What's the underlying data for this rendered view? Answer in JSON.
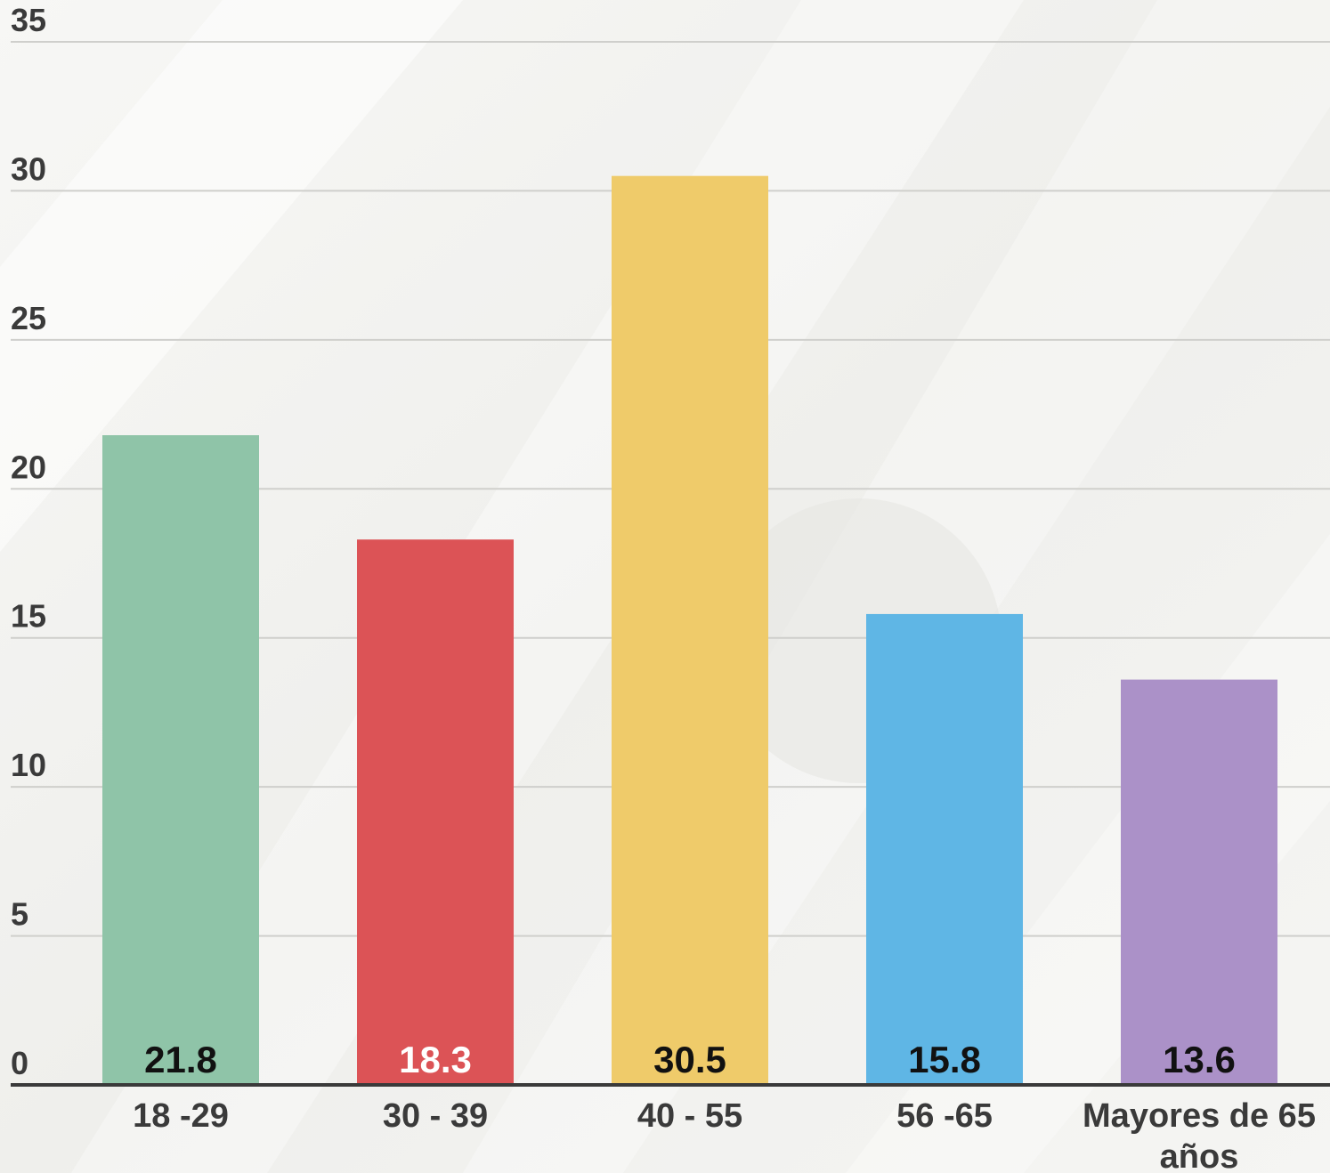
{
  "chart_data": {
    "type": "bar",
    "title": "",
    "xlabel": "",
    "ylabel": "",
    "categories": [
      "18 -29",
      "30 - 39",
      "40 - 55",
      "56 -65",
      "Mayores de 65 años"
    ],
    "values": [
      21.8,
      18.3,
      30.5,
      15.8,
      13.6
    ],
    "value_labels": [
      "21.8",
      "18.3",
      "30.5",
      "15.8",
      "13.6"
    ],
    "colors": [
      "#8fc4a8",
      "#dc5356",
      "#efcb6a",
      "#5fb6e5",
      "#ab91c8"
    ],
    "label_colors": [
      "#111111",
      "#ffffff",
      "#111111",
      "#111111",
      "#111111"
    ],
    "ylim": [
      0,
      35
    ],
    "yticks": [
      0,
      5,
      10,
      15,
      20,
      25,
      30,
      35
    ],
    "ytick_labels": [
      "0",
      "5",
      "10",
      "15",
      "20",
      "25",
      "30",
      "35"
    ],
    "grid": true,
    "legend": "none"
  }
}
